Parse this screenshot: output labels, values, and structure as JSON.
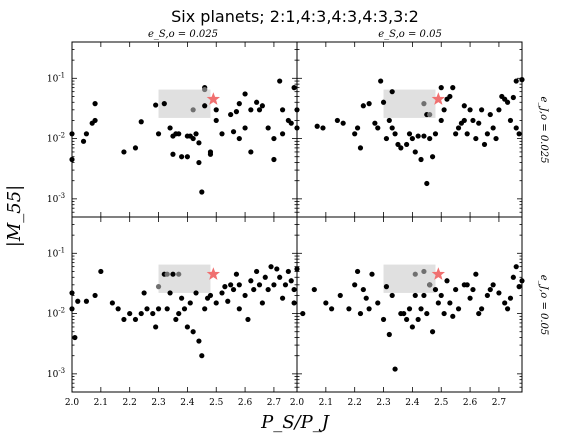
{
  "figure": {
    "title": "Six planets; 2:1,4:3,4:3,4:3,3:2",
    "xlabel": "P_S/P_J",
    "ylabel": "|M_55|",
    "col_titles": [
      "e_S,o = 0.025",
      "e_S,o = 0.05"
    ],
    "row_titles": [
      "e_J,o = 0.025",
      "e_J,o = 0.05"
    ]
  },
  "chart_data": {
    "type": "scatter",
    "title": "Six planets; 2:1,4:3,4:3,4:3,3:2",
    "xlabel": "P_S/P_J",
    "ylabel": "|M_55|",
    "xlim": [
      2.0,
      2.78
    ],
    "ylim": [
      0.0005,
      0.4
    ],
    "yscale": "log",
    "xticks": [
      "2.0",
      "2.1",
      "2.2",
      "2.3",
      "2.4",
      "2.5",
      "2.6",
      "2.7"
    ],
    "yticks": [
      "10^-3",
      "10^-2",
      "10^-1"
    ],
    "grid": false,
    "highlight_box": {
      "x": [
        2.3,
        2.48
      ],
      "y": [
        0.022,
        0.065
      ],
      "color": "#e0e0e0"
    },
    "star": {
      "x": 2.49,
      "y": 0.045,
      "color": "#f07070"
    },
    "point_color": "#000000",
    "panels": [
      {
        "col_title": "e_S,o = 0.025",
        "row_title": "e_J,o = 0.025",
        "points": [
          [
            2.0,
            0.0045
          ],
          [
            2.0,
            0.012
          ],
          [
            2.04,
            0.009
          ],
          [
            2.05,
            0.012
          ],
          [
            2.07,
            0.018
          ],
          [
            2.08,
            0.02
          ],
          [
            2.08,
            0.038
          ],
          [
            2.18,
            0.006
          ],
          [
            2.22,
            0.007
          ],
          [
            2.24,
            0.019
          ],
          [
            2.29,
            0.036
          ],
          [
            2.3,
            0.012
          ],
          [
            2.32,
            0.038
          ],
          [
            2.34,
            0.015
          ],
          [
            2.35,
            0.011
          ],
          [
            2.35,
            0.0055
          ],
          [
            2.36,
            0.012
          ],
          [
            2.37,
            0.012
          ],
          [
            2.38,
            0.005
          ],
          [
            2.4,
            0.011
          ],
          [
            2.4,
            0.005
          ],
          [
            2.41,
            0.011
          ],
          [
            2.42,
            0.01
          ],
          [
            2.43,
            0.012
          ],
          [
            2.44,
            0.0085
          ],
          [
            2.44,
            0.004
          ],
          [
            2.45,
            0.0013
          ],
          [
            2.46,
            0.07
          ],
          [
            2.46,
            0.035
          ],
          [
            2.48,
            0.006
          ],
          [
            2.48,
            0.0055
          ],
          [
            2.5,
            0.03
          ],
          [
            2.5,
            0.02
          ],
          [
            2.52,
            0.012
          ],
          [
            2.55,
            0.025
          ],
          [
            2.56,
            0.013
          ],
          [
            2.57,
            0.028
          ],
          [
            2.58,
            0.038
          ],
          [
            2.58,
            0.01
          ],
          [
            2.6,
            0.015
          ],
          [
            2.6,
            0.055
          ],
          [
            2.62,
            0.03
          ],
          [
            2.62,
            0.006
          ],
          [
            2.64,
            0.04
          ],
          [
            2.65,
            0.03
          ],
          [
            2.66,
            0.035
          ],
          [
            2.68,
            0.015
          ],
          [
            2.7,
            0.01
          ],
          [
            2.7,
            0.0045
          ],
          [
            2.72,
            0.09
          ],
          [
            2.73,
            0.03
          ],
          [
            2.73,
            0.012
          ],
          [
            2.75,
            0.02
          ],
          [
            2.76,
            0.018
          ],
          [
            2.77,
            0.07
          ]
        ],
        "shaded_points": [
          [
            2.42,
            0.03
          ],
          [
            2.46,
            0.065
          ]
        ]
      },
      {
        "col_title": "e_S,o = 0.05",
        "row_title": "e_J,o = 0.025",
        "points": [
          [
            2.0,
            0.03
          ],
          [
            2.0,
            0.015
          ],
          [
            2.07,
            0.016
          ],
          [
            2.09,
            0.015
          ],
          [
            2.14,
            0.02
          ],
          [
            2.16,
            0.018
          ],
          [
            2.2,
            0.012
          ],
          [
            2.21,
            0.015
          ],
          [
            2.22,
            0.007
          ],
          [
            2.23,
            0.035
          ],
          [
            2.25,
            0.038
          ],
          [
            2.27,
            0.018
          ],
          [
            2.28,
            0.015
          ],
          [
            2.29,
            0.09
          ],
          [
            2.3,
            0.04
          ],
          [
            2.31,
            0.01
          ],
          [
            2.32,
            0.02
          ],
          [
            2.33,
            0.015
          ],
          [
            2.33,
            0.06
          ],
          [
            2.34,
            0.012
          ],
          [
            2.35,
            0.008
          ],
          [
            2.36,
            0.007
          ],
          [
            2.38,
            0.008
          ],
          [
            2.39,
            0.012
          ],
          [
            2.4,
            0.01
          ],
          [
            2.41,
            0.006
          ],
          [
            2.42,
            0.011
          ],
          [
            2.43,
            0.0045
          ],
          [
            2.44,
            0.011
          ],
          [
            2.45,
            0.025
          ],
          [
            2.45,
            0.0018
          ],
          [
            2.46,
            0.01
          ],
          [
            2.47,
            0.005
          ],
          [
            2.48,
            0.012
          ],
          [
            2.5,
            0.02
          ],
          [
            2.5,
            0.07
          ],
          [
            2.51,
            0.03
          ],
          [
            2.52,
            0.045
          ],
          [
            2.53,
            0.05
          ],
          [
            2.54,
            0.07
          ],
          [
            2.55,
            0.012
          ],
          [
            2.56,
            0.015
          ],
          [
            2.57,
            0.018
          ],
          [
            2.58,
            0.035
          ],
          [
            2.58,
            0.02
          ],
          [
            2.59,
            0.012
          ],
          [
            2.6,
            0.03
          ],
          [
            2.61,
            0.02
          ],
          [
            2.62,
            0.01
          ],
          [
            2.63,
            0.018
          ],
          [
            2.64,
            0.03
          ],
          [
            2.65,
            0.008
          ],
          [
            2.66,
            0.012
          ],
          [
            2.67,
            0.025
          ],
          [
            2.68,
            0.015
          ],
          [
            2.69,
            0.01
          ],
          [
            2.7,
            0.03
          ],
          [
            2.71,
            0.05
          ],
          [
            2.72,
            0.045
          ],
          [
            2.73,
            0.04
          ],
          [
            2.74,
            0.02
          ],
          [
            2.75,
            0.048
          ],
          [
            2.76,
            0.015
          ],
          [
            2.76,
            0.09
          ],
          [
            2.77,
            0.012
          ],
          [
            2.78,
            0.095
          ]
        ],
        "shaded_points": [
          [
            2.44,
            0.038
          ],
          [
            2.46,
            0.025
          ]
        ]
      },
      {
        "col_title": "e_S,o = 0.025",
        "row_title": "e_J,o = 0.05",
        "points": [
          [
            2.0,
            0.012
          ],
          [
            2.0,
            0.022
          ],
          [
            2.01,
            0.004
          ],
          [
            2.02,
            0.016
          ],
          [
            2.05,
            0.016
          ],
          [
            2.08,
            0.02
          ],
          [
            2.1,
            0.05
          ],
          [
            2.14,
            0.015
          ],
          [
            2.16,
            0.012
          ],
          [
            2.18,
            0.008
          ],
          [
            2.2,
            0.01
          ],
          [
            2.22,
            0.008
          ],
          [
            2.24,
            0.01
          ],
          [
            2.25,
            0.022
          ],
          [
            2.26,
            0.012
          ],
          [
            2.28,
            0.01
          ],
          [
            2.29,
            0.006
          ],
          [
            2.3,
            0.012
          ],
          [
            2.32,
            0.045
          ],
          [
            2.33,
            0.012
          ],
          [
            2.34,
            0.022
          ],
          [
            2.35,
            0.045
          ],
          [
            2.36,
            0.008
          ],
          [
            2.37,
            0.01
          ],
          [
            2.38,
            0.018
          ],
          [
            2.39,
            0.012
          ],
          [
            2.4,
            0.006
          ],
          [
            2.41,
            0.015
          ],
          [
            2.42,
            0.005
          ],
          [
            2.43,
            0.022
          ],
          [
            2.44,
            0.0035
          ],
          [
            2.45,
            0.002
          ],
          [
            2.46,
            0.012
          ],
          [
            2.47,
            0.018
          ],
          [
            2.48,
            0.02
          ],
          [
            2.5,
            0.015
          ],
          [
            2.52,
            0.022
          ],
          [
            2.53,
            0.028
          ],
          [
            2.54,
            0.016
          ],
          [
            2.55,
            0.03
          ],
          [
            2.56,
            0.025
          ],
          [
            2.57,
            0.045
          ],
          [
            2.58,
            0.012
          ],
          [
            2.58,
            0.03
          ],
          [
            2.6,
            0.02
          ],
          [
            2.61,
            0.008
          ],
          [
            2.62,
            0.035
          ],
          [
            2.63,
            0.025
          ],
          [
            2.64,
            0.05
          ],
          [
            2.65,
            0.03
          ],
          [
            2.66,
            0.015
          ],
          [
            2.67,
            0.04
          ],
          [
            2.68,
            0.025
          ],
          [
            2.69,
            0.06
          ],
          [
            2.7,
            0.03
          ],
          [
            2.71,
            0.055
          ],
          [
            2.72,
            0.04
          ],
          [
            2.73,
            0.018
          ],
          [
            2.74,
            0.03
          ],
          [
            2.75,
            0.05
          ],
          [
            2.76,
            0.035
          ],
          [
            2.77,
            0.025
          ],
          [
            2.77,
            0.015
          ],
          [
            2.78,
            0.055
          ]
        ],
        "shaded_points": [
          [
            2.3,
            0.028
          ],
          [
            2.33,
            0.045
          ],
          [
            2.37,
            0.045
          ]
        ]
      },
      {
        "col_title": "e_S,o = 0.05",
        "row_title": "e_J,o = 0.05",
        "points": [
          [
            2.02,
            0.01
          ],
          [
            2.06,
            0.025
          ],
          [
            2.1,
            0.015
          ],
          [
            2.12,
            0.012
          ],
          [
            2.15,
            0.02
          ],
          [
            2.18,
            0.012
          ],
          [
            2.2,
            0.03
          ],
          [
            2.21,
            0.05
          ],
          [
            2.22,
            0.01
          ],
          [
            2.23,
            0.025
          ],
          [
            2.24,
            0.018
          ],
          [
            2.25,
            0.012
          ],
          [
            2.26,
            0.045
          ],
          [
            2.28,
            0.015
          ],
          [
            2.3,
            0.008
          ],
          [
            2.31,
            0.028
          ],
          [
            2.32,
            0.0045
          ],
          [
            2.33,
            0.02
          ],
          [
            2.34,
            0.0012
          ],
          [
            2.36,
            0.01
          ],
          [
            2.37,
            0.01
          ],
          [
            2.38,
            0.008
          ],
          [
            2.39,
            0.012
          ],
          [
            2.4,
            0.006
          ],
          [
            2.41,
            0.02
          ],
          [
            2.42,
            0.008
          ],
          [
            2.43,
            0.012
          ],
          [
            2.44,
            0.02
          ],
          [
            2.45,
            0.01
          ],
          [
            2.46,
            0.03
          ],
          [
            2.47,
            0.005
          ],
          [
            2.48,
            0.025
          ],
          [
            2.49,
            0.015
          ],
          [
            2.5,
            0.02
          ],
          [
            2.51,
            0.01
          ],
          [
            2.52,
            0.035
          ],
          [
            2.53,
            0.015
          ],
          [
            2.54,
            0.009
          ],
          [
            2.55,
            0.025
          ],
          [
            2.56,
            0.012
          ],
          [
            2.58,
            0.03
          ],
          [
            2.59,
            0.03
          ],
          [
            2.6,
            0.018
          ],
          [
            2.61,
            0.025
          ],
          [
            2.62,
            0.045
          ],
          [
            2.63,
            0.01
          ],
          [
            2.64,
            0.012
          ],
          [
            2.66,
            0.02
          ],
          [
            2.67,
            0.025
          ],
          [
            2.68,
            0.03
          ],
          [
            2.7,
            0.022
          ],
          [
            2.72,
            0.015
          ],
          [
            2.73,
            0.012
          ],
          [
            2.74,
            0.018
          ],
          [
            2.75,
            0.04
          ],
          [
            2.76,
            0.06
          ],
          [
            2.77,
            0.028
          ],
          [
            2.78,
            0.035
          ]
        ],
        "shaded_points": [
          [
            2.41,
            0.045
          ],
          [
            2.44,
            0.05
          ],
          [
            2.46,
            0.03
          ]
        ]
      }
    ]
  }
}
